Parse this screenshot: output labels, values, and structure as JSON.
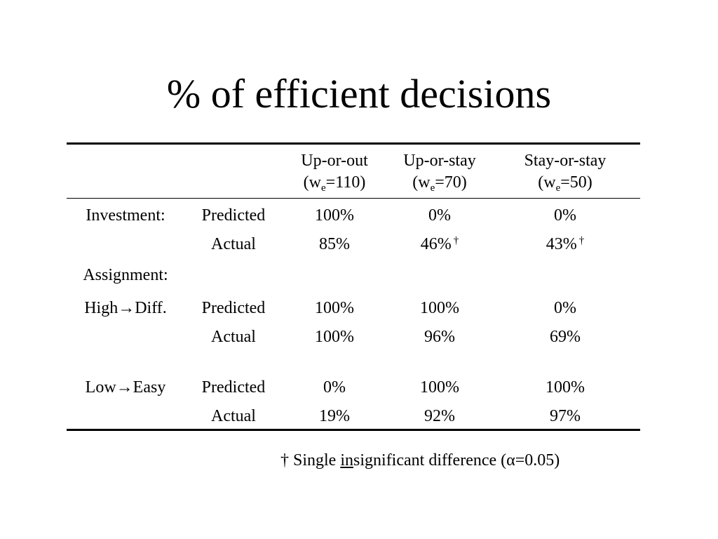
{
  "title": "% of efficient decisions",
  "columns": [
    {
      "label": "Up-or-out",
      "w_prefix": "(w",
      "w_sub": "e",
      "w_suffix": "=110)"
    },
    {
      "label": "Up-or-stay",
      "w_prefix": "(w",
      "w_sub": "e",
      "w_suffix": "=70)"
    },
    {
      "label": "Stay-or-stay",
      "w_prefix": "(w",
      "w_sub": "e",
      "w_suffix": "=50)"
    }
  ],
  "rows": {
    "investment": {
      "label": "Investment:",
      "predicted_label": "Predicted",
      "predicted": [
        "100%",
        "0%",
        "0%"
      ],
      "actual_label": "Actual",
      "actual": [
        "85%",
        "46%",
        "43%"
      ],
      "actual_marks": [
        "",
        "†",
        "†"
      ]
    },
    "assignment_label": "Assignment:",
    "high_diff": {
      "label": "High→Diff.",
      "predicted_label": "Predicted",
      "predicted": [
        "100%",
        "100%",
        "0%"
      ],
      "actual_label": "Actual",
      "actual": [
        "100%",
        "96%",
        "69%"
      ]
    },
    "low_easy": {
      "label": "Low→Easy",
      "predicted_label": "Predicted",
      "predicted": [
        "0%",
        "100%",
        "100%"
      ],
      "actual_label": "Actual",
      "actual": [
        "19%",
        "92%",
        "97%"
      ]
    }
  },
  "footnote": {
    "before": "† Single ",
    "underlined": "in",
    "after": "significant difference (α=0.05)"
  }
}
